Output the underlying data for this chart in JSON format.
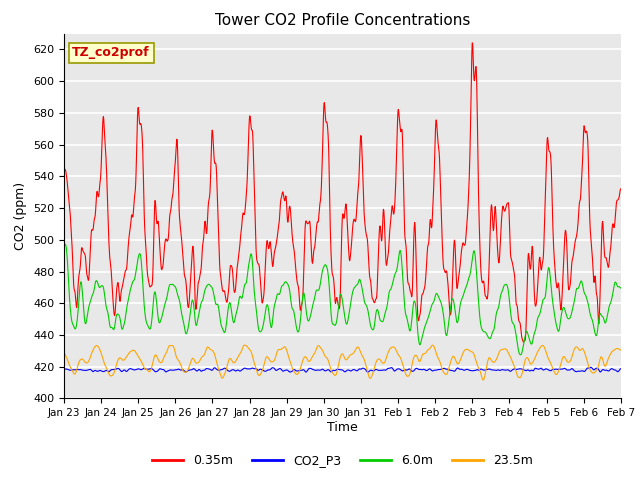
{
  "title": "Tower CO2 Profile Concentrations",
  "xlabel": "Time",
  "ylabel": "CO2 (ppm)",
  "ylim": [
    400,
    630
  ],
  "yticks": [
    400,
    420,
    440,
    460,
    480,
    500,
    520,
    540,
    560,
    580,
    600,
    620
  ],
  "plot_bg_color": "#e8e8e8",
  "grid_color": "#ffffff",
  "annotation_text": "TZ_co2prof",
  "annotation_bg": "#ffffcc",
  "annotation_border": "#999900",
  "legend_labels": [
    "0.35m",
    "CO2_P3",
    "6.0m",
    "23.5m"
  ],
  "legend_colors": [
    "#ff0000",
    "#0000ff",
    "#00cc00",
    "#ffa500"
  ],
  "xtick_labels": [
    "Jan 23",
    "Jan 24",
    "Jan 25",
    "Jan 26",
    "Jan 27",
    "Jan 28",
    "Jan 29",
    "Jan 30",
    "Jan 31",
    "Feb 1",
    "Feb 2",
    "Feb 3",
    "Feb 4",
    "Feb 5",
    "Feb 6",
    "Feb 7"
  ]
}
